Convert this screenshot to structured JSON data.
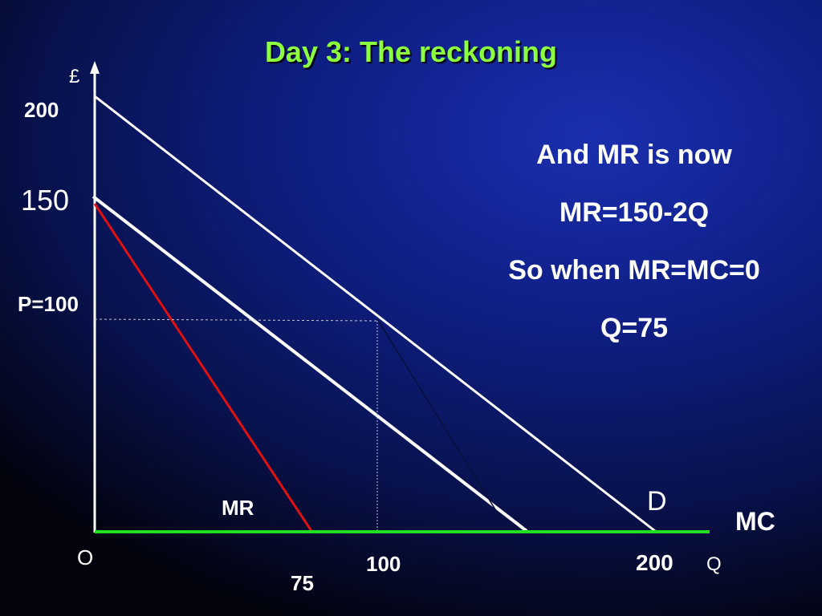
{
  "slide": {
    "title": "Day 3: The reckoning"
  },
  "axes": {
    "y_label": "£",
    "x_label": "Q",
    "origin_label": "O"
  },
  "labels": {
    "y_tick_200": "200",
    "y_tick_150": "150",
    "price_label": "P=100",
    "x_tick_75": "75",
    "x_tick_100": "100",
    "x_tick_200": "200",
    "mr_curve": "MR",
    "demand_curve": "D",
    "mc_curve": "MC"
  },
  "notes": [
    "And MR is now",
    "MR=150-2Q",
    "So when MR=MC=0",
    "Q=75"
  ],
  "colors": {
    "title": "#8cff3f",
    "mr_line": "#e01010",
    "mc_line": "#22dd22",
    "lines": "#ffffff"
  }
}
